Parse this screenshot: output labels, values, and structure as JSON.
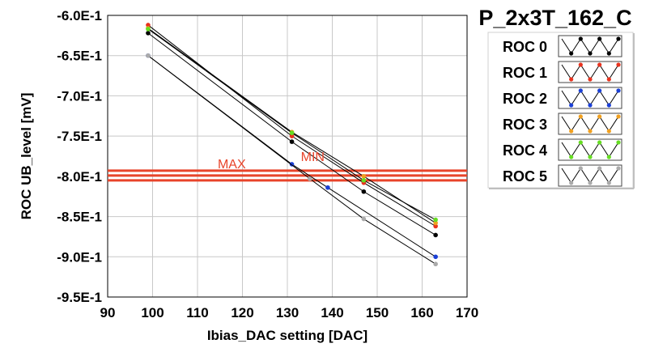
{
  "chart_data": {
    "type": "line",
    "title": "P_2x3T_162_C",
    "xlabel": "Ibias_DAC setting [DAC]",
    "ylabel": "ROC UB_level [mV]",
    "xlim": [
      90,
      170
    ],
    "ylim": [
      -0.95,
      -0.6
    ],
    "x_ticks": [
      "90",
      "100",
      "110",
      "120",
      "130",
      "140",
      "150",
      "160",
      "170"
    ],
    "x_tick_values": [
      90,
      100,
      110,
      120,
      130,
      140,
      150,
      160,
      170
    ],
    "y_ticks": [
      "-6.0E-1",
      "-6.5E-1",
      "-7.0E-1",
      "-7.5E-1",
      "-8.0E-1",
      "-8.5E-1",
      "-9.0E-1",
      "-9.5E-1"
    ],
    "y_tick_values": [
      -0.6,
      -0.65,
      -0.7,
      -0.75,
      -0.8,
      -0.85,
      -0.9,
      -0.95
    ],
    "grid": true,
    "legend_position": "right",
    "series": [
      {
        "name": "ROC 0",
        "color": "#000000",
        "x": [
          99,
          131,
          147,
          163
        ],
        "y": [
          -0.622,
          -0.757,
          -0.819,
          -0.873
        ]
      },
      {
        "name": "ROC 1",
        "color": "#e8321e",
        "x": [
          99,
          131,
          147,
          163
        ],
        "y": [
          -0.612,
          -0.75,
          -0.808,
          -0.862
        ]
      },
      {
        "name": "ROC 2",
        "color": "#1a3fd6",
        "x": [
          99,
          131,
          139,
          163
        ],
        "y": [
          -0.65,
          -0.785,
          -0.814,
          -0.9
        ]
      },
      {
        "name": "ROC 3",
        "color": "#f0a020",
        "x": [
          99,
          131,
          147,
          163
        ],
        "y": [
          -0.616,
          -0.745,
          -0.8,
          -0.858
        ]
      },
      {
        "name": "ROC 4",
        "color": "#66dd22",
        "x": [
          99,
          131,
          147,
          163
        ],
        "y": [
          -0.617,
          -0.746,
          -0.805,
          -0.854
        ]
      },
      {
        "name": "ROC 5",
        "color": "#aaaaaa",
        "x": [
          99,
          135,
          147,
          163
        ],
        "y": [
          -0.65,
          -0.803,
          -0.853,
          -0.909
        ]
      }
    ],
    "hlines": [
      {
        "y": -0.793,
        "color": "#e8442a"
      },
      {
        "y": -0.799,
        "color": "#e8442a"
      },
      {
        "y": -0.805,
        "color": "#e8442a"
      }
    ],
    "annotations": [
      {
        "text": "MAX",
        "x": 114.5,
        "y": -0.79,
        "color": "#e8442a"
      },
      {
        "text": "MIN",
        "x": 133,
        "y": -0.781,
        "color": "#e8442a"
      }
    ]
  }
}
